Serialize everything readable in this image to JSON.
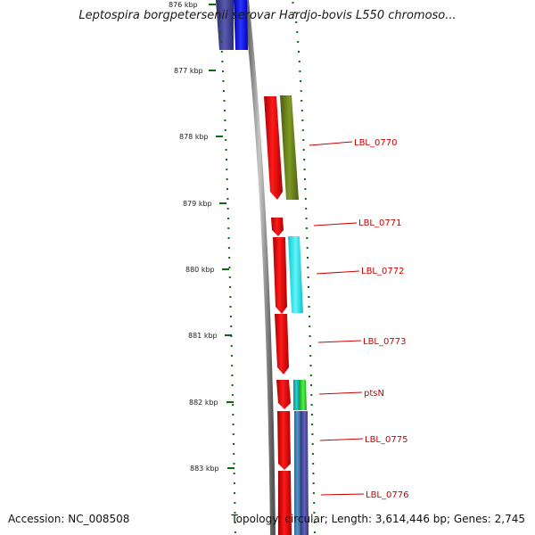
{
  "title": "Leptospira borgpetersenii serovar Hardjo-bovis L550 chromoso...",
  "footer": {
    "accession": "Accession: NC_008508",
    "summary": "Topology: circular; Length: 3,614,446 bp; Genes: 2,745"
  },
  "axis": {
    "ticks": [
      "876 kbp",
      "877 kbp",
      "878 kbp",
      "879 kbp",
      "880 kbp",
      "881 kbp",
      "882 kbp",
      "883 kbp"
    ]
  },
  "genes": [
    {
      "label": "LBL_0770"
    },
    {
      "label": "LBL_0771"
    },
    {
      "label": "LBL_0772"
    },
    {
      "label": "LBL_0773"
    },
    {
      "label": "ptsN"
    },
    {
      "label": "LBL_0775"
    },
    {
      "label": "LBL_0776"
    }
  ],
  "colors": {
    "cds": "#ee0000",
    "olive": "#6b7f1e",
    "cyan": "#19e8f0",
    "navy": "#3a3a8c",
    "blue": "#0d12e6",
    "teal": "#12b5b5",
    "green": "#2ed22e",
    "steel": "#3f78b0",
    "purple": "#4a4a98",
    "tick": "#0a6b0a",
    "label": "#cc0000",
    "backbone": "#888888"
  }
}
